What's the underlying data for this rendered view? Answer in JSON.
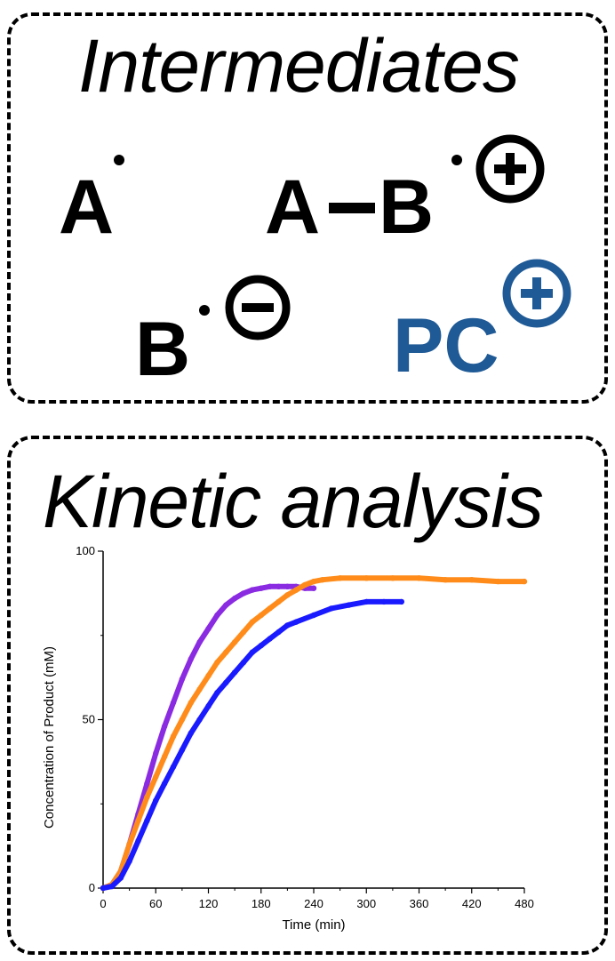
{
  "intermediates": {
    "title": "Intermediates",
    "species": {
      "a_radical": "A",
      "ab_left": "A",
      "ab_right": "B",
      "b_radical": "B",
      "pc": "PC"
    },
    "charges": {
      "ab_radical_cation": "plus",
      "b_radical_anion": "minus",
      "pc_cation": "plus"
    },
    "colors": {
      "ink": "#000000",
      "pc": "#1f5a96"
    }
  },
  "kinetic": {
    "title": "Kinetic analysis"
  },
  "chart_data": {
    "type": "line",
    "xlabel": "Time (min)",
    "ylabel": "Concentration of Product (mM)",
    "xlim": [
      0,
      480
    ],
    "ylim": [
      0,
      100
    ],
    "x_ticks": [
      0,
      60,
      120,
      180,
      240,
      300,
      360,
      420,
      480
    ],
    "y_ticks": [
      0,
      50,
      100
    ],
    "grid": false,
    "legend": "none",
    "series": [
      {
        "color": "#8a2be2",
        "x": [
          0,
          10,
          20,
          30,
          40,
          50,
          60,
          70,
          80,
          90,
          100,
          110,
          120,
          130,
          140,
          150,
          160,
          170,
          180,
          190,
          200,
          210,
          220,
          230,
          240
        ],
        "y": [
          0,
          1,
          5,
          13,
          22,
          31,
          40,
          48,
          55,
          62,
          68,
          73,
          77,
          81,
          84,
          86,
          87.5,
          88.5,
          89,
          89.5,
          89.5,
          89.5,
          89.5,
          89,
          89
        ]
      },
      {
        "color": "#ff8c1a",
        "x": [
          0,
          10,
          20,
          30,
          40,
          50,
          60,
          70,
          80,
          90,
          100,
          110,
          120,
          130,
          140,
          150,
          160,
          170,
          180,
          190,
          200,
          210,
          220,
          230,
          240,
          250,
          270,
          300,
          330,
          360,
          390,
          420,
          450,
          480
        ],
        "y": [
          0,
          1,
          5,
          13,
          20,
          27,
          33,
          39,
          45,
          50,
          55,
          59,
          63,
          67,
          70,
          73,
          76,
          79,
          81,
          83,
          85,
          87,
          88.5,
          90,
          91,
          91.5,
          92,
          92,
          92,
          92,
          91.5,
          91.5,
          91,
          91
        ]
      },
      {
        "color": "#1a1aff",
        "x": [
          0,
          10,
          20,
          30,
          40,
          50,
          60,
          70,
          80,
          90,
          100,
          110,
          120,
          130,
          140,
          150,
          160,
          170,
          180,
          190,
          200,
          210,
          220,
          240,
          260,
          280,
          300,
          320,
          340
        ],
        "y": [
          0,
          0.5,
          3,
          8,
          14,
          20,
          26,
          31,
          36,
          41,
          46,
          50,
          54,
          58,
          61,
          64,
          67,
          70,
          72,
          74,
          76,
          78,
          79,
          81,
          83,
          84,
          85,
          85,
          85
        ]
      }
    ]
  }
}
